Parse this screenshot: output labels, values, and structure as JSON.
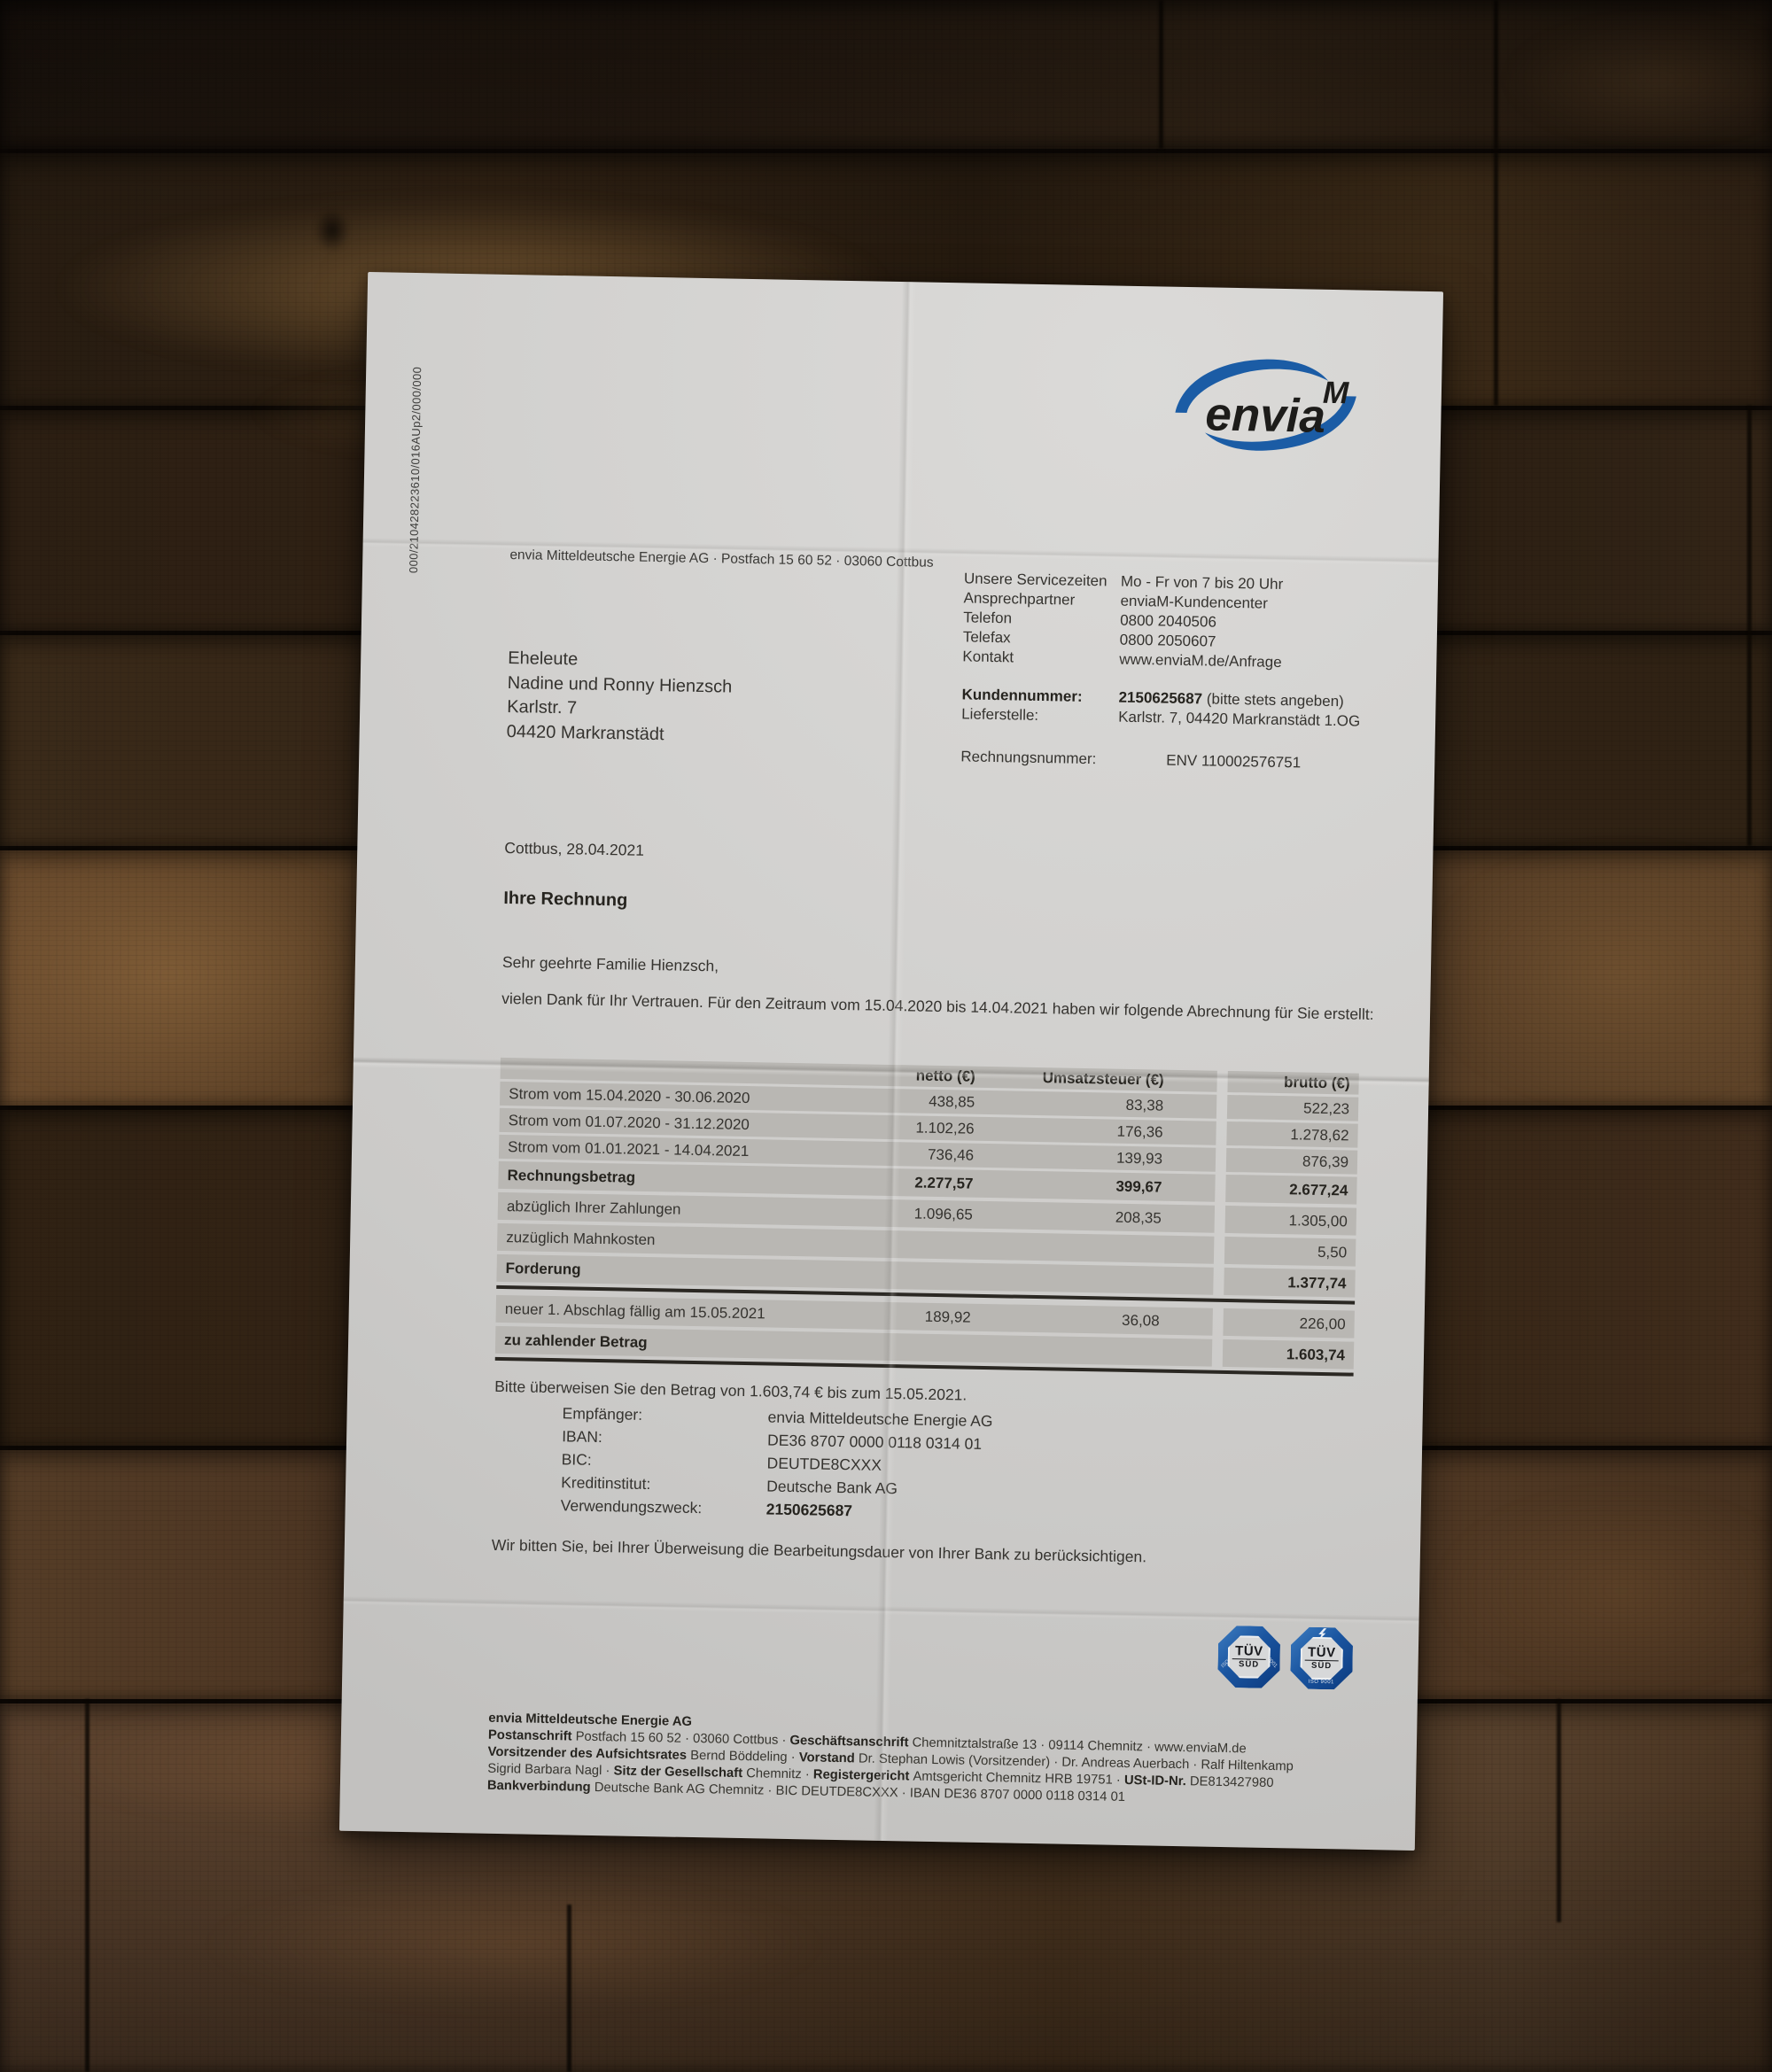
{
  "letter": {
    "ref_vertical": "000/210428223610/016AUp2/000/000",
    "logo": {
      "word": "envia",
      "superscript": "M",
      "blue": "#1b5ca5",
      "black": "#1d1c1a"
    },
    "sender_line": "envia Mitteldeutsche Energie AG · Postfach 15 60 52 · 03060 Cottbus",
    "recipient_lines": [
      "Eheleute",
      "Nadine und Ronny Hienzsch",
      "Karlstr. 7",
      "04420 Markranstädt"
    ],
    "service_rows": [
      {
        "label": "Unsere Servicezeiten",
        "value": "Mo - Fr von 7 bis 20 Uhr"
      },
      {
        "label": "Ansprechpartner",
        "value": "enviaM-Kundencenter"
      },
      {
        "label": "Telefon",
        "value": "0800 2040506"
      },
      {
        "label": "Telefax",
        "value": "0800 2050607"
      },
      {
        "label": "Kontakt",
        "value": "www.enviaM.de/Anfrage"
      }
    ],
    "kundennummer_label": "Kundennummer:",
    "kundennummer_segments": [
      {
        "t": "2150625687",
        "b": true
      },
      {
        "t": " (bitte stets angeben)"
      }
    ],
    "lieferstelle_label": "Lieferstelle:",
    "lieferstelle_value": "Karlstr. 7, 04420 Markranstädt 1.OG",
    "rechnungsnummer_label": "Rechnungsnummer:",
    "rechnungsnummer_value": "ENV 110002576751",
    "dateline": "Cottbus, 28.04.2021",
    "subject": "Ihre Rechnung",
    "salutation": "Sehr geehrte Familie Hienzsch,",
    "intro": "vielen Dank für Ihr Vertrauen. Für den Zeitraum vom 15.04.2020 bis 14.04.2021 haben wir folgende Abrechnung für Sie erstellt:"
  },
  "table": {
    "headers": [
      "",
      "netto (€)",
      "Umsatzsteuer (€)",
      "brutto (€)"
    ],
    "upper_rows": [
      {
        "label": "Strom vom 15.04.2020 - 30.06.2020",
        "netto": "438,85",
        "ust": "83,38",
        "brutto": "522,23",
        "bold": false
      },
      {
        "label": "Strom vom 01.07.2020 - 31.12.2020",
        "netto": "1.102,26",
        "ust": "176,36",
        "brutto": "1.278,62",
        "bold": false
      },
      {
        "label": "Strom vom 01.01.2021 - 14.04.2021",
        "netto": "736,46",
        "ust": "139,93",
        "brutto": "876,39",
        "bold": false
      }
    ],
    "lower_rows": [
      {
        "label": "Rechnungsbetrag",
        "netto": "2.277,57",
        "ust": "399,67",
        "brutto": "2.677,24",
        "bold": true
      },
      {
        "label": "abzüglich Ihrer Zahlungen",
        "netto": "1.096,65",
        "ust": "208,35",
        "brutto": "1.305,00",
        "bold": false
      },
      {
        "label": "zuzüglich Mahnkosten",
        "netto": "",
        "ust": "",
        "brutto": "5,50",
        "bold": false
      },
      {
        "label": "Forderung",
        "netto": "",
        "ust": "",
        "brutto": "1.377,74",
        "bold": true,
        "divider_after": true
      },
      {
        "label": "neuer 1. Abschlag fällig am 15.05.2021",
        "netto": "189,92",
        "ust": "36,08",
        "brutto": "226,00",
        "bold": false
      },
      {
        "label": "zu zahlender Betrag",
        "netto": "",
        "ust": "",
        "brutto": "1.603,74",
        "bold": true
      }
    ]
  },
  "payment": {
    "intro": "Bitte überweisen Sie den Betrag von 1.603,74 € bis zum 15.05.2021.",
    "rows": [
      {
        "label": "Empfänger:",
        "value": "envia Mitteldeutsche Energie AG",
        "bold": false
      },
      {
        "label": "IBAN:",
        "value": "DE36 8707 0000 0118 0314 01",
        "bold": false
      },
      {
        "label": "BIC:",
        "value": "DEUTDE8CXXX",
        "bold": false
      },
      {
        "label": "Kreditinstitut:",
        "value": "Deutsche Bank AG",
        "bold": false
      },
      {
        "label": "Verwendungszweck:",
        "value": "2150625687",
        "bold": true
      }
    ],
    "closing": "Wir bitten Sie, bei Ihrer Überweisung die Bearbeitungsdauer von Ihrer Bank zu berücksichtigen."
  },
  "badges": {
    "b1": {
      "top": "TÜV",
      "bottom": "SÜD",
      "side_left": "ISO 14001",
      "side_right": "ISO 9001"
    },
    "b2": {
      "top": "TÜV",
      "bottom": "SÜD",
      "sub": "ISO 9001"
    }
  },
  "footer": {
    "lines": [
      [
        {
          "t": "envia Mitteldeutsche Energie AG",
          "b": true
        }
      ],
      [
        {
          "t": "Postanschrift ",
          "b": true
        },
        {
          "t": "Postfach 15 60 52 · 03060 Cottbus · "
        },
        {
          "t": "Geschäftsanschrift ",
          "b": true
        },
        {
          "t": "Chemnitztalstraße 13 · 09114 Chemnitz · www.enviaM.de"
        }
      ],
      [
        {
          "t": "Vorsitzender des Aufsichtsrates ",
          "b": true
        },
        {
          "t": "Bernd Böddeling · "
        },
        {
          "t": "Vorstand ",
          "b": true
        },
        {
          "t": "Dr. Stephan Lowis (Vorsitzender) · Dr. Andreas Auerbach · Ralf Hiltenkamp"
        }
      ],
      [
        {
          "t": "Sigrid Barbara Nagl · "
        },
        {
          "t": "Sitz der Gesellschaft ",
          "b": true
        },
        {
          "t": "Chemnitz · "
        },
        {
          "t": "Registergericht ",
          "b": true
        },
        {
          "t": "Amtsgericht Chemnitz HRB 19751 · "
        },
        {
          "t": "USt-ID-Nr. ",
          "b": true
        },
        {
          "t": "DE813427980"
        }
      ],
      [
        {
          "t": "Bankverbindung ",
          "b": true
        },
        {
          "t": "Deutsche Bank AG Chemnitz · BIC DEUTDE8CXXX · IBAN DE36 8707 0000 0118 0314 01"
        }
      ]
    ]
  }
}
